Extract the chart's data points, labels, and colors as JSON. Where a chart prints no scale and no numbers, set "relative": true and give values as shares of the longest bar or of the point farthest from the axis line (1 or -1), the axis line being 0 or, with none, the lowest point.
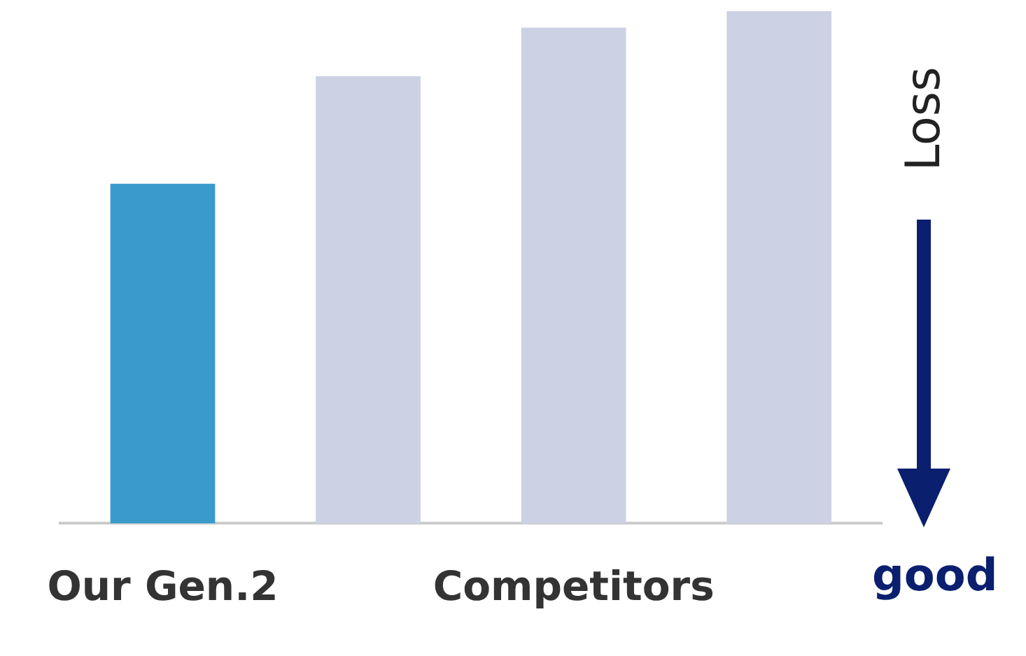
{
  "chart_data": {
    "type": "bar",
    "relative": true,
    "ylabel": "Loss",
    "annotations": [
      "good"
    ],
    "categories": [
      "Our Gen.2",
      null,
      "Competitors",
      null
    ],
    "values": [
      0.663,
      0.873,
      0.968,
      1
    ],
    "colors": [
      "#3a9acb",
      "#ccd2e3",
      "#ccd2e3",
      "#ccd2e3"
    ],
    "grid": false,
    "legend": false
  }
}
